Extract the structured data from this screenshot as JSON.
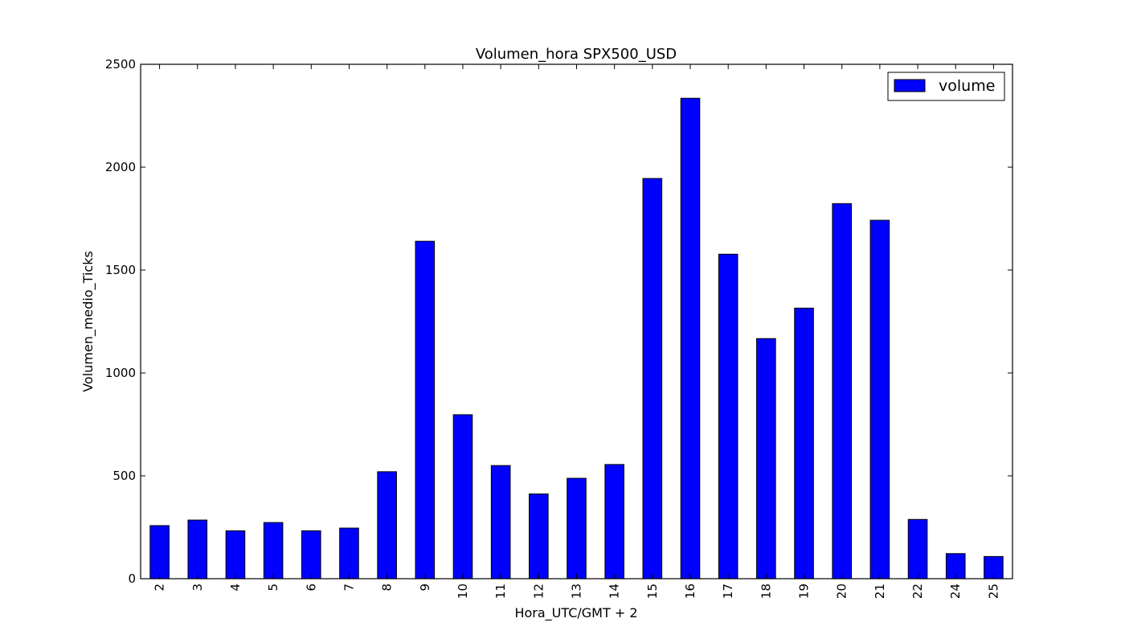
{
  "chart_data": {
    "type": "bar",
    "title": "Volumen_hora SPX500_USD",
    "xlabel": "Hora_UTC/GMT + 2",
    "ylabel": "Volumen_medio_Ticks",
    "categories": [
      "2",
      "3",
      "4",
      "5",
      "6",
      "7",
      "8",
      "9",
      "10",
      "11",
      "12",
      "13",
      "14",
      "15",
      "16",
      "17",
      "18",
      "19",
      "20",
      "21",
      "22",
      "24",
      "25"
    ],
    "series": [
      {
        "name": "volume",
        "color": "#0000ff",
        "values": [
          258,
          285,
          233,
          273,
          233,
          246,
          520,
          1640,
          797,
          550,
          412,
          488,
          555,
          1945,
          2335,
          1577,
          1167,
          1315,
          1823,
          1742,
          288,
          122,
          108
        ]
      }
    ],
    "ylim": [
      0,
      2500
    ],
    "yticks": [
      0,
      500,
      1000,
      1500,
      2000,
      2500
    ],
    "grid": false,
    "legend_position": "top-right"
  }
}
